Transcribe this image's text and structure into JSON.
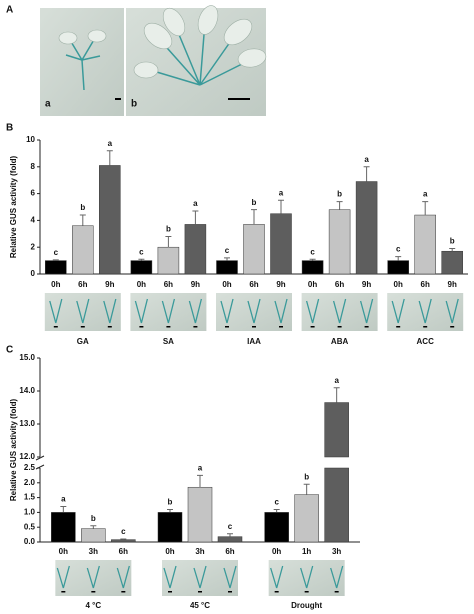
{
  "panel_a": {
    "label": "A",
    "photo_labels": [
      "a",
      "b"
    ]
  },
  "chart_data": [
    {
      "type": "bar",
      "panel": "B",
      "y_label": "Relative GUS activity (fold)",
      "ylim": [
        0,
        10
      ],
      "yticks": [
        0,
        2,
        4,
        6,
        8,
        10
      ],
      "colors": [
        "#000000",
        "#c4c4c4",
        "#5e5e5e"
      ],
      "groups": [
        {
          "name": "GA",
          "bars": [
            "0h",
            "6h",
            "9h"
          ],
          "values": [
            1.0,
            3.6,
            8.1
          ],
          "errors": [
            0.05,
            0.8,
            1.1
          ],
          "letters": [
            "c",
            "b",
            "a"
          ]
        },
        {
          "name": "SA",
          "bars": [
            "0h",
            "6h",
            "9h"
          ],
          "values": [
            1.0,
            2.0,
            3.7
          ],
          "errors": [
            0.1,
            0.8,
            1.0
          ],
          "letters": [
            "c",
            "b",
            "a"
          ]
        },
        {
          "name": "IAA",
          "bars": [
            "0h",
            "6h",
            "9h"
          ],
          "values": [
            1.0,
            3.7,
            4.5
          ],
          "errors": [
            0.2,
            1.1,
            1.0
          ],
          "letters": [
            "c",
            "b",
            "a"
          ]
        },
        {
          "name": "ABA",
          "bars": [
            "0h",
            "6h",
            "9h"
          ],
          "values": [
            1.0,
            4.8,
            6.9
          ],
          "errors": [
            0.1,
            0.6,
            1.1
          ],
          "letters": [
            "c",
            "b",
            "a"
          ]
        },
        {
          "name": "ACC",
          "bars": [
            "0h",
            "6h",
            "9h"
          ],
          "values": [
            1.0,
            4.4,
            1.7
          ],
          "errors": [
            0.3,
            1.0,
            0.2
          ],
          "letters": [
            "c",
            "a",
            "b"
          ]
        }
      ]
    },
    {
      "type": "bar",
      "panel": "C",
      "y_label": "Relative GUS activity (fold)",
      "ylim": [
        0,
        15
      ],
      "axis_break": [
        2.5,
        12
      ],
      "yticks": [
        {
          "value": 0,
          "label": "0.0"
        },
        {
          "value": 0.5,
          "label": "0.5"
        },
        {
          "value": 1,
          "label": "1.0"
        },
        {
          "value": 1.5,
          "label": "1.5"
        },
        {
          "value": 2,
          "label": "2.0"
        },
        {
          "value": 2.5,
          "label": "2.5"
        },
        {
          "value": 12,
          "label": "12.0"
        },
        {
          "value": 13,
          "label": "13.0"
        },
        {
          "value": 14,
          "label": "14.0"
        },
        {
          "value": 15,
          "label": "15.0"
        }
      ],
      "colors": [
        "#000000",
        "#c4c4c4",
        "#5e5e5e"
      ],
      "groups": [
        {
          "name": "4 °C",
          "bars": [
            "0h",
            "3h",
            "6h"
          ],
          "values": [
            1.0,
            0.45,
            0.08
          ],
          "errors": [
            0.2,
            0.1,
            0.02
          ],
          "letters": [
            "a",
            "b",
            "c"
          ]
        },
        {
          "name": "45 °C",
          "bars": [
            "0h",
            "3h",
            "6h"
          ],
          "values": [
            1.0,
            1.85,
            0.18
          ],
          "errors": [
            0.1,
            0.4,
            0.1
          ],
          "letters": [
            "b",
            "a",
            "c"
          ]
        },
        {
          "name": "Drought",
          "bars": [
            "0h",
            "1h",
            "3h"
          ],
          "values": [
            1.0,
            1.6,
            13.65
          ],
          "errors": [
            0.1,
            0.35,
            0.45
          ],
          "letters": [
            "c",
            "b",
            "a"
          ]
        }
      ]
    }
  ]
}
